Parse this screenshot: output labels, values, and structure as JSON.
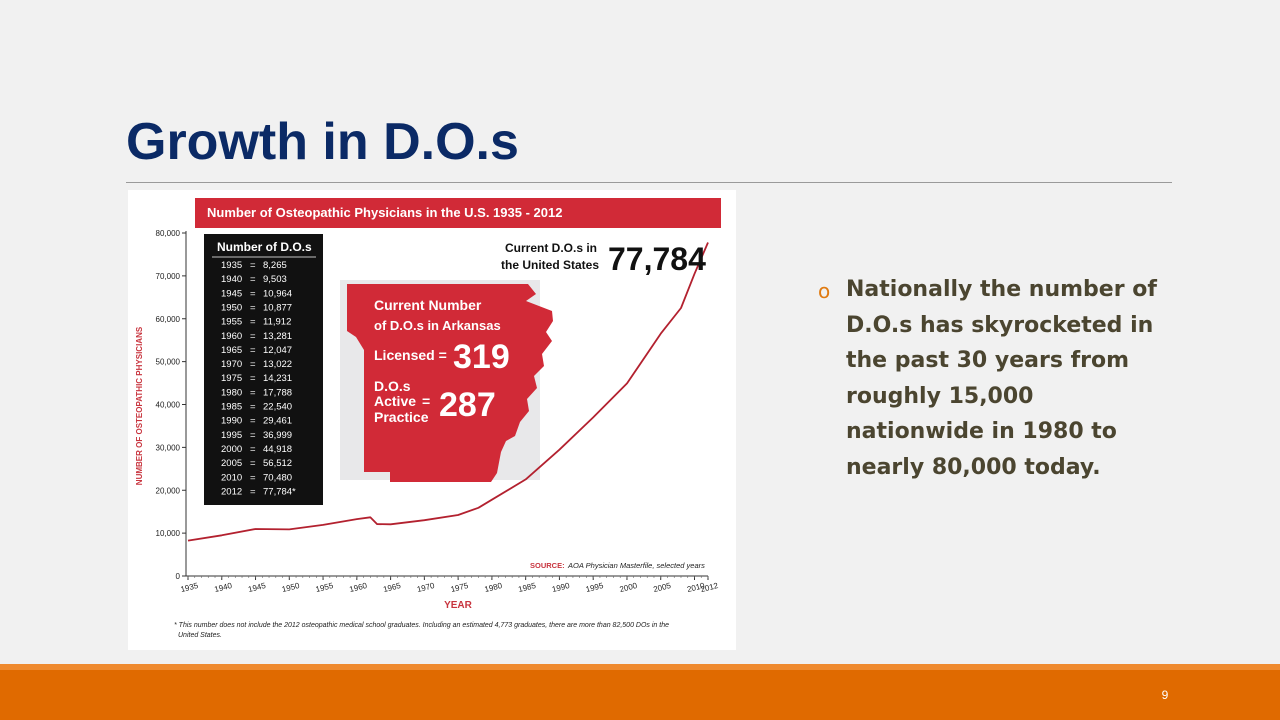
{
  "slide": {
    "title": "Growth in D.O.s",
    "page_number": "9"
  },
  "bullet": {
    "marker": "o",
    "text": "Nationally the number of D.O.s has skyrocketed in the past 30 years from roughly 15,000 nationwide in 1980 to nearly 80,000 today."
  },
  "chart_data": {
    "type": "line",
    "title": "Number of Osteopathic Physicians in the U.S. 1935 - 2012",
    "ylabel": "NUMBER OF OSTEOPATHIC PHYSICIANS",
    "xlabel": "YEAR",
    "ylim": [
      0,
      80000
    ],
    "xlim": [
      1935,
      2012
    ],
    "yticks": [
      0,
      10000,
      20000,
      30000,
      40000,
      50000,
      60000,
      70000,
      80000
    ],
    "ytick_labels": [
      "0",
      "10,000",
      "20,000",
      "30,000",
      "40,000",
      "50,000",
      "60,000",
      "70,000",
      "80,000"
    ],
    "xticks": [
      1935,
      1940,
      1945,
      1950,
      1955,
      1960,
      1965,
      1970,
      1975,
      1980,
      1985,
      1990,
      1995,
      2000,
      2005,
      2010,
      2012
    ],
    "series_color": "#b3212f",
    "accent_color": "#d12a37",
    "series": [
      {
        "x": [
          1935,
          1940,
          1945,
          1950,
          1955,
          1960,
          1962,
          1963,
          1965,
          1970,
          1975,
          1978,
          1980,
          1985,
          1990,
          1995,
          2000,
          2005,
          2008,
          2010,
          2012
        ],
        "values": [
          8265,
          9503,
          10964,
          10877,
          11912,
          13281,
          13700,
          12100,
          12047,
          13022,
          14231,
          15900,
          17788,
          22540,
          29461,
          36999,
          44918,
          56512,
          62500,
          70480,
          77784
        ]
      }
    ],
    "table": {
      "header": "Number of D.O.s",
      "rows": [
        {
          "year": "1935",
          "count": "8,265"
        },
        {
          "year": "1940",
          "count": "9,503"
        },
        {
          "year": "1945",
          "count": "10,964"
        },
        {
          "year": "1950",
          "count": "10,877"
        },
        {
          "year": "1955",
          "count": "11,912"
        },
        {
          "year": "1960",
          "count": "13,281"
        },
        {
          "year": "1965",
          "count": "12,047"
        },
        {
          "year": "1970",
          "count": "13,022"
        },
        {
          "year": "1975",
          "count": "14,231"
        },
        {
          "year": "1980",
          "count": "17,788"
        },
        {
          "year": "1985",
          "count": "22,540"
        },
        {
          "year": "1990",
          "count": "29,461"
        },
        {
          "year": "1995",
          "count": "36,999"
        },
        {
          "year": "2000",
          "count": "44,918"
        },
        {
          "year": "2005",
          "count": "56,512"
        },
        {
          "year": "2010",
          "count": "70,480"
        },
        {
          "year": "2012",
          "count": "77,784*"
        }
      ]
    },
    "callout_us": {
      "label_line1": "Current D.O.s in",
      "label_line2": "the United States",
      "value": "77,784"
    },
    "arkansas": {
      "heading_line1": "Current Number",
      "heading_line2": "of D.O.s in Arkansas",
      "licensed_label": "Licensed =",
      "licensed_value": "319",
      "active_label_line1": "D.O.s",
      "active_label_line2": "Active",
      "active_label_line3": "Practice",
      "active_equals": "=",
      "active_value": "287"
    },
    "source": {
      "label": "SOURCE:",
      "text": "AOA Physician Masterfile, selected years"
    },
    "footnote_line1": "* This number does not include the 2012 osteopathic medical school graduates. Including an estimated 4,773 graduates, there are more than 82,500 DOs in the",
    "footnote_line2": "United States."
  }
}
